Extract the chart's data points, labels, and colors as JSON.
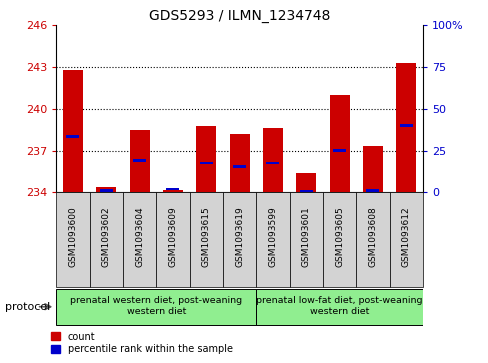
{
  "title": "GDS5293 / ILMN_1234748",
  "samples": [
    "GSM1093600",
    "GSM1093602",
    "GSM1093604",
    "GSM1093609",
    "GSM1093615",
    "GSM1093619",
    "GSM1093599",
    "GSM1093601",
    "GSM1093605",
    "GSM1093608",
    "GSM1093612"
  ],
  "bar_values": [
    242.8,
    234.4,
    238.5,
    234.2,
    238.8,
    238.2,
    238.6,
    235.4,
    241.0,
    237.3,
    243.3
  ],
  "blue_values": [
    238.0,
    234.15,
    236.3,
    234.25,
    236.1,
    235.85,
    236.1,
    234.1,
    237.0,
    234.15,
    238.8
  ],
  "ymin": 234.0,
  "ymax": 246.0,
  "yticks": [
    234,
    237,
    240,
    243,
    246
  ],
  "y2min": 0,
  "y2max": 100,
  "y2ticks": [
    0,
    25,
    50,
    75,
    100
  ],
  "bar_color": "#cc0000",
  "blue_color": "#0000cc",
  "bar_width": 0.6,
  "group1_label": "prenatal western diet, post-weaning\nwestern diet",
  "group2_label": "prenatal low-fat diet, post-weaning\nwestern diet",
  "group1_count": 6,
  "group2_count": 5,
  "protocol_label": "protocol",
  "legend_count": "count",
  "legend_percentile": "percentile rank within the sample",
  "grid_color": "#000000",
  "plot_bg": "#ffffff",
  "fig_bg": "#ffffff",
  "tick_label_color_left": "#cc0000",
  "tick_label_color_right": "#0000cc",
  "sample_box_color": "#d3d3d3",
  "group_box_color": "#90EE90"
}
